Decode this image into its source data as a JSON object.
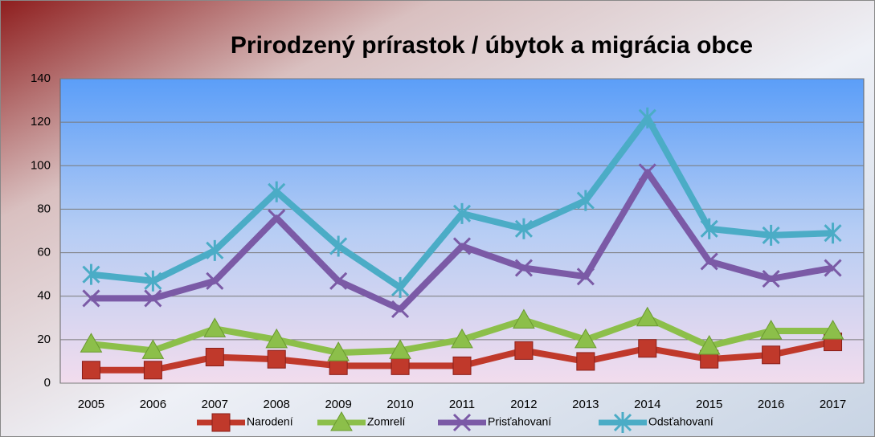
{
  "chart_data": {
    "type": "line",
    "title": "Prirodzený prírastok / úbytok a migrácia obce",
    "categories": [
      "2005",
      "2006",
      "2007",
      "2008",
      "2009",
      "2010",
      "2011",
      "2012",
      "2013",
      "2014",
      "2015",
      "2016",
      "2017"
    ],
    "series": [
      {
        "name": "Narodení",
        "color": "#c0392b",
        "marker": "square",
        "values": [
          6,
          6,
          12,
          11,
          8,
          8,
          8,
          15,
          10,
          16,
          11,
          13,
          19
        ]
      },
      {
        "name": "Zomrelí",
        "color": "#8cbf4a",
        "marker": "triangle",
        "values": [
          18,
          15,
          25,
          20,
          14,
          15,
          20,
          29,
          20,
          30,
          17,
          24,
          24
        ]
      },
      {
        "name": "Prisťahovaní",
        "color": "#7b5aa6",
        "marker": "x",
        "values": [
          39,
          39,
          47,
          76,
          47,
          34,
          63,
          53,
          49,
          97,
          56,
          48,
          53
        ]
      },
      {
        "name": "Odsťahovaní",
        "color": "#4bacc6",
        "marker": "star",
        "values": [
          50,
          47,
          61,
          88,
          63,
          44,
          78,
          71,
          84,
          122,
          71,
          68,
          69
        ]
      }
    ],
    "ylim": [
      0,
      140
    ],
    "yticks": [
      0,
      20,
      40,
      60,
      80,
      100,
      120,
      140
    ],
    "grid": true,
    "legend": "bottom"
  }
}
